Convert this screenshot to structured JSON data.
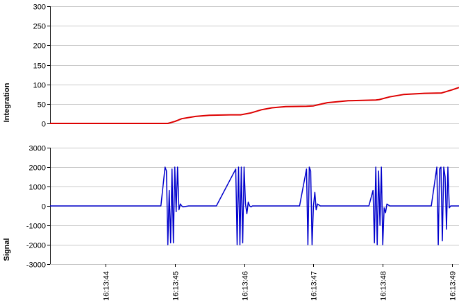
{
  "chart_data": [
    {
      "type": "line",
      "ylabel": "Integration",
      "ylim": [
        0,
        300
      ],
      "yticks": [
        "300",
        "250",
        "200",
        "150",
        "100",
        "50",
        "0"
      ],
      "ytick_values": [
        300,
        250,
        200,
        150,
        100,
        50,
        0
      ],
      "grid": true,
      "series": [
        {
          "color": "#dd0000",
          "x": [
            43.2,
            44.0,
            44.9,
            45.0,
            45.1,
            45.3,
            45.5,
            45.8,
            45.95,
            46.1,
            46.25,
            46.4,
            46.6,
            46.9,
            47.0,
            47.1,
            47.2,
            47.5,
            47.9,
            47.95,
            48.1,
            48.3,
            48.6,
            48.85,
            49.0,
            49.1
          ],
          "y": [
            0,
            0,
            0,
            5,
            12,
            18,
            21,
            22,
            22,
            27,
            35,
            40,
            43,
            44,
            45,
            49,
            53,
            58,
            60,
            61,
            68,
            74,
            77,
            78,
            86,
            92
          ]
        }
      ]
    },
    {
      "type": "line",
      "ylabel": "Signal",
      "xlabel": "",
      "ylim": [
        -3000,
        3000
      ],
      "yticks": [
        "3000",
        "2000",
        "1000",
        "0",
        "-1000",
        "-2000",
        "-3000"
      ],
      "ytick_values": [
        3000,
        2000,
        1000,
        0,
        -1000,
        -2000,
        -3000
      ],
      "x_range": [
        43.2,
        49.1
      ],
      "xticks": [
        "16:13:44",
        "16:13:45",
        "16:13:46",
        "16:13:47",
        "16:13:48",
        "16:13:49"
      ],
      "xtick_values": [
        44,
        45,
        46,
        47,
        48,
        49
      ],
      "grid": true,
      "series": [
        {
          "color": "#0000cc",
          "x": [
            43.2,
            44.8,
            44.86,
            44.88,
            44.9,
            44.92,
            44.94,
            44.96,
            44.98,
            45.0,
            45.02,
            45.04,
            45.06,
            45.08,
            45.1,
            45.12,
            45.2,
            45.6,
            45.88,
            45.9,
            45.92,
            45.94,
            45.96,
            45.98,
            46.0,
            46.02,
            46.04,
            46.06,
            46.08,
            46.1,
            46.12,
            46.2,
            46.8,
            46.9,
            46.92,
            46.94,
            46.96,
            46.98,
            47.0,
            47.02,
            47.04,
            47.06,
            47.1,
            47.8,
            47.86,
            47.88,
            47.9,
            47.92,
            47.94,
            47.96,
            47.98,
            48.0,
            48.02,
            48.04,
            48.06,
            48.1,
            48.7,
            48.78,
            48.8,
            48.82,
            48.84,
            48.86,
            48.88,
            48.9,
            48.92,
            48.94,
            48.96,
            48.98,
            49.1
          ],
          "y": [
            0,
            0,
            2000,
            1800,
            -2000,
            800,
            -1900,
            1900,
            -1900,
            2000,
            -300,
            2000,
            -200,
            100,
            0,
            -50,
            0,
            0,
            1900,
            -2000,
            2000,
            -2000,
            2000,
            -1900,
            2000,
            100,
            -400,
            200,
            0,
            -50,
            0,
            0,
            0,
            1900,
            -2000,
            2000,
            1800,
            -2000,
            0,
            700,
            -200,
            100,
            0,
            0,
            800,
            -1900,
            2000,
            -2000,
            1800,
            -1000,
            2000,
            -2000,
            -100,
            -350,
            100,
            0,
            0,
            2000,
            -2000,
            1900,
            2000,
            -1800,
            2000,
            1500,
            -1200,
            2000,
            -100,
            0,
            0
          ]
        }
      ]
    }
  ]
}
